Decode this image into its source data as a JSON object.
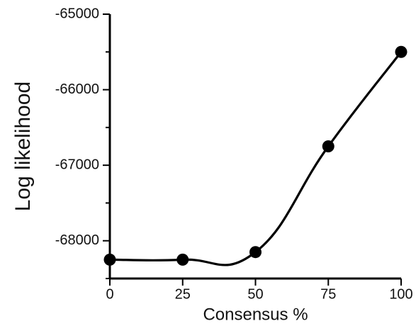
{
  "chart_data": {
    "type": "line",
    "title": "",
    "xlabel": "Consensus %",
    "ylabel": "Log likelihood",
    "x": [
      0,
      25,
      50,
      75,
      100
    ],
    "series": [
      {
        "values": [
          -68250,
          -68250,
          -68150,
          -66750,
          -65500
        ]
      }
    ],
    "xlim": [
      0,
      100
    ],
    "ylim": [
      -68500,
      -65000
    ],
    "x_ticks": [
      0,
      25,
      50,
      75,
      100
    ],
    "y_major_ticks": [
      -68000,
      -67000,
      -66000,
      -65000
    ],
    "y_minor_ticks": [
      -68500,
      -67500,
      -66500,
      -65500
    ],
    "x_tick_labels": [
      "0",
      "25",
      "50",
      "75",
      "100"
    ],
    "y_tick_labels": [
      "-68000",
      "-67000",
      "-66000",
      "-65000"
    ],
    "grid": false,
    "legend": "none",
    "colors": {
      "line": "#000000",
      "marker": "#000000",
      "axis": "#000000",
      "text": "#111111"
    }
  }
}
